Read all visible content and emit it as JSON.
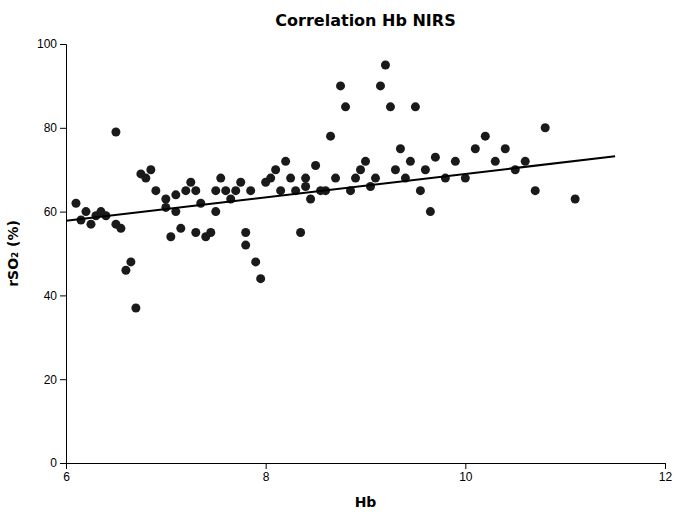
{
  "chart_data": {
    "type": "scatter",
    "title": "Correlation Hb NIRS",
    "xlabel": "Hb",
    "ylabel": "rSO₂ (%)",
    "xlim": [
      6,
      12
    ],
    "ylim": [
      0,
      100
    ],
    "xticks": [
      6,
      8,
      10,
      12
    ],
    "yticks": [
      0,
      20,
      40,
      60,
      80,
      100
    ],
    "grid": false,
    "series": [
      {
        "type": "scatter",
        "color": "#1a1a1a",
        "x": [
          6.1,
          6.15,
          6.2,
          6.25,
          6.3,
          6.35,
          6.4,
          6.5,
          6.5,
          6.55,
          6.6,
          6.65,
          6.7,
          6.75,
          6.8,
          6.85,
          6.9,
          7.0,
          7.0,
          7.05,
          7.1,
          7.1,
          7.15,
          7.2,
          7.25,
          7.3,
          7.3,
          7.35,
          7.4,
          7.45,
          7.5,
          7.5,
          7.55,
          7.6,
          7.65,
          7.7,
          7.75,
          7.8,
          7.8,
          7.85,
          7.9,
          7.95,
          8.0,
          8.05,
          8.1,
          8.15,
          8.2,
          8.25,
          8.3,
          8.35,
          8.4,
          8.4,
          8.45,
          8.5,
          8.55,
          8.6,
          8.65,
          8.7,
          8.75,
          8.8,
          8.85,
          8.9,
          8.95,
          9.0,
          9.05,
          9.1,
          9.15,
          9.2,
          9.25,
          9.3,
          9.35,
          9.4,
          9.45,
          9.5,
          9.55,
          9.6,
          9.65,
          9.7,
          9.8,
          9.9,
          10.0,
          10.1,
          10.2,
          10.3,
          10.4,
          10.5,
          10.6,
          10.7,
          10.8,
          11.1
        ],
        "values": [
          62,
          58,
          60,
          57,
          59,
          60,
          59,
          79,
          57,
          56,
          46,
          48,
          37,
          69,
          68,
          70,
          65,
          61,
          63,
          54,
          60,
          64,
          56,
          65,
          67,
          55,
          65,
          62,
          54,
          55,
          60,
          65,
          68,
          65,
          63,
          65,
          67,
          52,
          55,
          65,
          48,
          44,
          67,
          68,
          70,
          65,
          72,
          68,
          65,
          55,
          66,
          68,
          63,
          71,
          65,
          65,
          78,
          68,
          90,
          85,
          65,
          68,
          70,
          72,
          66,
          68,
          90,
          95,
          85,
          70,
          75,
          68,
          72,
          85,
          65,
          70,
          60,
          73,
          68,
          72,
          68,
          75,
          78,
          72,
          75,
          70,
          72,
          65,
          80,
          63
        ]
      },
      {
        "type": "line",
        "color": "#000000",
        "x": [
          6.0,
          11.5
        ],
        "values": [
          57.8,
          73.2
        ]
      }
    ]
  }
}
